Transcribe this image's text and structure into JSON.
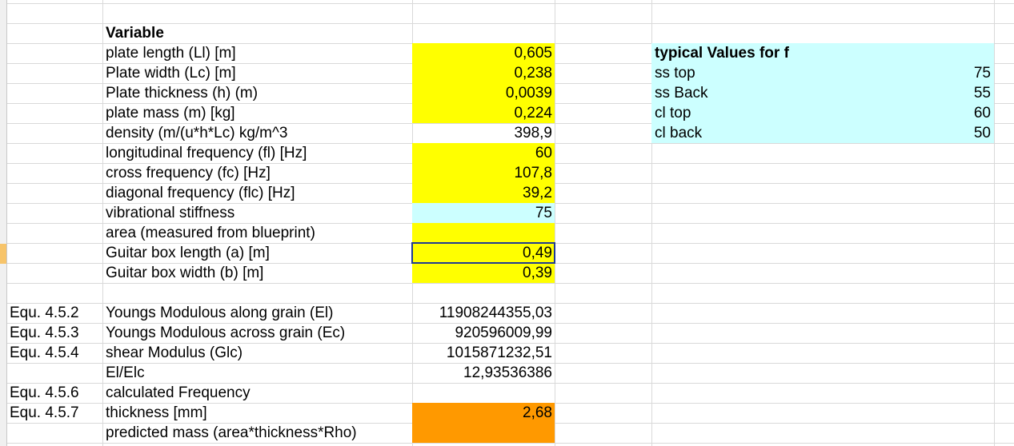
{
  "colors": {
    "yellow": "#ffff00",
    "light_cyan": "#ccffff",
    "orange": "#ff9900",
    "selection_border": "#1f3a93",
    "gridline": "#d9d9d9"
  },
  "cells": {
    "variable_header": "Variable",
    "labels": {
      "plate_length": "plate length (Ll) [m]",
      "plate_width": "Plate width (Lc) [m]",
      "plate_thickness": "Plate thickness (h) (m)",
      "plate_mass": "plate mass (m) [kg]",
      "density": "density (m/(u*h*Lc) kg/m^3",
      "long_freq": "longitudinal frequency (fl) [Hz]",
      "cross_freq": "cross frequency (fc) [Hz]",
      "diag_freq": "diagonal  frequency (flc) [Hz]",
      "vib_stiffness": "vibrational stiffness",
      "area": "area (measured from blueprint)",
      "box_length": "Guitar box length (a) [m]",
      "box_width": "Guitar box width (b) [m]",
      "youngs_el": "Youngs Modulous along grain  (El)",
      "youngs_ec": "Youngs Modulous across grain  (Ec)",
      "shear": "shear Modulus (Glc)",
      "el_elc": "El/Elc",
      "calc_freq": "calculated Frequency",
      "thickness_mm": "thickness [mm]",
      "pred_mass": "predicted mass (area*thickness*Rho)"
    },
    "values": {
      "plate_length": "0,605",
      "plate_width": "0,238",
      "plate_thickness": "0,0039",
      "plate_mass": "0,224",
      "density": "398,9",
      "long_freq": "60",
      "cross_freq": "107,8",
      "diag_freq": "39,2",
      "vib_stiffness": "75",
      "box_length": "0,49",
      "box_width": "0,39",
      "youngs_el": "11908244355,03",
      "youngs_ec": "920596009,99",
      "shear": "1015871232,51",
      "el_elc": "12,93536386",
      "thickness_mm": "2,68"
    },
    "equations": {
      "youngs_el": "Equ. 4.5.2",
      "youngs_ec": "Equ. 4.5.3",
      "shear": "Equ. 4.5.4",
      "calc_freq": "Equ. 4.5.6",
      "thickness_mm": "Equ. 4.5.7"
    },
    "typical": {
      "header": "typical Values for f",
      "items": [
        {
          "label": "ss top",
          "value": "75"
        },
        {
          "label": "ss Back",
          "value": "55"
        },
        {
          "label": "cl top",
          "value": "60"
        },
        {
          "label": "cl back",
          "value": "50"
        }
      ]
    }
  }
}
